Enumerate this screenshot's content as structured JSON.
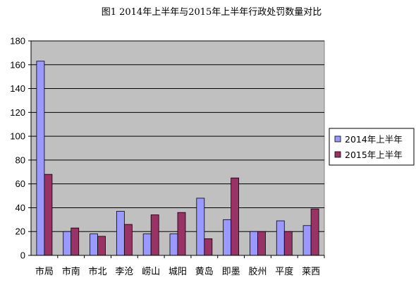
{
  "chart_data": {
    "type": "bar",
    "title": "图1 2014年上半年与2015年上半年行政处罚数量对比",
    "categories": [
      "市局",
      "市南",
      "市北",
      "李沧",
      "崂山",
      "城阳",
      "黄岛",
      "即墨",
      "胶州",
      "平度",
      "莱西"
    ],
    "series": [
      {
        "name": "2014年上半年",
        "color": "#9999ff",
        "values": [
          163,
          20,
          18,
          37,
          18,
          18,
          48,
          30,
          20,
          29,
          25
        ]
      },
      {
        "name": "2015年上半年",
        "color": "#993366",
        "values": [
          68,
          23,
          16,
          26,
          34,
          36,
          14,
          65,
          20,
          20,
          39
        ]
      }
    ],
    "ylim": [
      0,
      180
    ],
    "yticks": [
      0,
      20,
      40,
      60,
      80,
      100,
      120,
      140,
      160,
      180
    ],
    "plot_background": "#c0c0c0",
    "grid": true,
    "legend_position": "right"
  }
}
